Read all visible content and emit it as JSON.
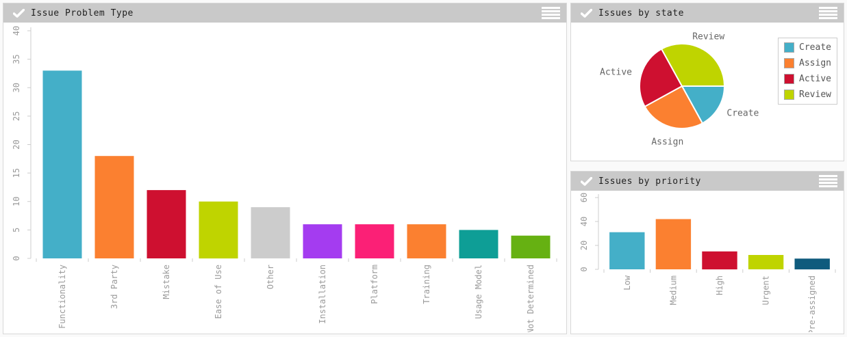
{
  "theme": {
    "header_bg": "#c9c9c9",
    "panel_border": "#d8d8d8",
    "panel_bg": "#ffffff",
    "axis_color": "#cccccc",
    "tick_label_color": "#9a9a9a",
    "title_color": "#1f1f1f",
    "pie_label_color": "#666666",
    "legend_text_color": "#555555",
    "icon_color": "#ffffff"
  },
  "panels": [
    {
      "id": "issue-problem-type",
      "title": "Issue Problem Type",
      "icons": [
        "check-icon",
        "menu-icon"
      ]
    },
    {
      "id": "issues-by-state",
      "title": "Issues by state",
      "icons": [
        "check-icon",
        "menu-icon"
      ]
    },
    {
      "id": "issues-by-priority",
      "title": "Issues by priority",
      "icons": [
        "check-icon",
        "menu-icon"
      ]
    }
  ],
  "chart_data": [
    {
      "type": "bar",
      "title": "Issue Problem Type",
      "categories": [
        "Functionality",
        "3rd Party",
        "Mistake",
        "Ease of Use",
        "Other",
        "Installation",
        "Platform",
        "Training",
        "Usage Model",
        "Not Determined"
      ],
      "values": [
        33,
        18,
        12,
        10,
        9,
        6,
        6,
        6,
        5,
        4
      ],
      "colors": [
        "#44AFC8",
        "#FB8030",
        "#CE1030",
        "#BFD400",
        "#CCCCCC",
        "#A43CF0",
        "#FB2076",
        "#FB8030",
        "#0E9E96",
        "#66B112"
      ],
      "xlabel": "",
      "ylabel": "",
      "ylim": [
        0,
        40
      ],
      "yticks": [
        0,
        5,
        10,
        15,
        20,
        25,
        30,
        35,
        40
      ],
      "grid": false,
      "legend_position": "none",
      "x_label_rotation_deg": -90
    },
    {
      "type": "pie",
      "title": "Issues by state",
      "labels": [
        "Create",
        "Assign",
        "Active",
        "Review"
      ],
      "values": [
        17,
        25,
        25,
        33
      ],
      "colors": [
        "#44AFC8",
        "#FB8030",
        "#CE1030",
        "#BFD400"
      ],
      "start_angle_deg": 0,
      "direction": "clockwise",
      "legend_position": "right"
    },
    {
      "type": "bar",
      "title": "Issues by priority",
      "categories": [
        "Low",
        "Medium",
        "High",
        "Urgent",
        "Pre-assigned"
      ],
      "values": [
        31,
        42,
        15,
        12,
        9
      ],
      "colors": [
        "#44AFC8",
        "#FB8030",
        "#CE1030",
        "#BFD400",
        "#0F5B7D"
      ],
      "xlabel": "",
      "ylabel": "",
      "ylim": [
        0,
        60
      ],
      "yticks": [
        0,
        20,
        40,
        60
      ],
      "grid": false,
      "legend_position": "none",
      "x_label_rotation_deg": -90
    }
  ]
}
